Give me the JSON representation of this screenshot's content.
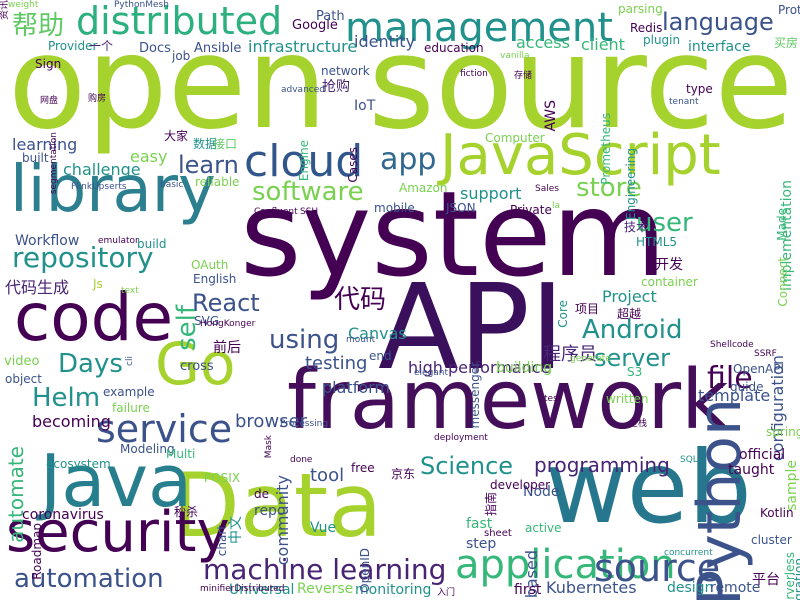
{
  "palette": {
    "dark_purple": "#440154",
    "indigo": "#3b528b",
    "teal": "#21918c",
    "green": "#5ec962",
    "lime": "#addc30",
    "light_green": "#7ad151",
    "slate": "#31688e",
    "sea": "#35b779"
  },
  "words": [
    {
      "text": "open source",
      "color": "#a6d22d",
      "rot": 0
    },
    {
      "text": "system",
      "color": "#440154",
      "rot": 0
    },
    {
      "text": "API",
      "color": "#3a0f5c",
      "rot": 0
    },
    {
      "text": "web",
      "color": "#26778e",
      "rot": 0
    },
    {
      "text": "Data",
      "color": "#a6d22d",
      "rot": 0
    },
    {
      "text": "framework",
      "color": "#440e5a",
      "rot": 0
    },
    {
      "text": "library",
      "color": "#2c7f8e",
      "rot": 0
    },
    {
      "text": "Java",
      "color": "#277f8e",
      "rot": 0
    },
    {
      "text": "JavaScript",
      "color": "#a6d22d",
      "rot": 0
    },
    {
      "text": "code",
      "color": "#440154",
      "rot": 0
    },
    {
      "text": "Python",
      "color": "#3b528b",
      "rot": 270
    },
    {
      "text": "security",
      "color": "#440154",
      "rot": 0
    },
    {
      "text": "Go",
      "color": "#a6d22d",
      "rot": 0
    },
    {
      "text": "cloud",
      "color": "#31568c",
      "rot": 0
    },
    {
      "text": "management",
      "color": "#21918c",
      "rot": 0
    },
    {
      "text": "distributed",
      "color": "#2cb07f",
      "rot": 0
    },
    {
      "text": "application",
      "color": "#35b779",
      "rot": 0
    },
    {
      "text": "service",
      "color": "#3b528b",
      "rot": 0
    },
    {
      "text": "source",
      "color": "#3b528b",
      "rot": 0
    },
    {
      "text": "machine learning",
      "color": "#482475",
      "rot": 0
    },
    {
      "text": "automation",
      "color": "#3b528b",
      "rot": 0
    },
    {
      "text": "repository",
      "color": "#21918c",
      "rot": 0
    },
    {
      "text": "language",
      "color": "#3b528b",
      "rot": 0
    },
    {
      "text": "software",
      "color": "#7ad151",
      "rot": 0
    },
    {
      "text": "React",
      "color": "#3b528b",
      "rot": 0
    },
    {
      "text": "Android",
      "color": "#21918c",
      "rot": 0
    },
    {
      "text": "server",
      "color": "#21918c",
      "rot": 0
    },
    {
      "text": "store",
      "color": "#7ad151",
      "rot": 0
    },
    {
      "text": "app",
      "color": "#31688e",
      "rot": 0
    },
    {
      "text": "file",
      "color": "#440154",
      "rot": 0
    },
    {
      "text": "Helm",
      "color": "#21918c",
      "rot": 0
    },
    {
      "text": "Days",
      "color": "#21918c",
      "rot": 0
    },
    {
      "text": "learn",
      "color": "#3b528b",
      "rot": 0
    },
    {
      "text": "self",
      "color": "#35b779",
      "rot": 270
    },
    {
      "text": "user",
      "color": "#35b779",
      "rot": 0
    },
    {
      "text": "using",
      "color": "#3b528b",
      "rot": 0
    },
    {
      "text": "programming",
      "color": "#482475",
      "rot": 0
    },
    {
      "text": "Science",
      "color": "#21918c",
      "rot": 0
    },
    {
      "text": "Kubernetes",
      "color": "#3b528b",
      "rot": 0
    },
    {
      "text": "automate",
      "color": "#35b779",
      "rot": 270
    },
    {
      "text": "代码",
      "color": "#440154",
      "rot": 0
    },
    {
      "text": "帮助",
      "color": "#5ec962",
      "rot": 0
    },
    {
      "text": "代码生成",
      "color": "#482475",
      "rot": 0
    },
    {
      "text": "browser",
      "color": "#3b528b",
      "rot": 0
    },
    {
      "text": "testing",
      "color": "#3b528b",
      "rot": 0
    },
    {
      "text": "tool",
      "color": "#3b528b",
      "rot": 0
    },
    {
      "text": "high performance",
      "color": "#482475",
      "rot": 0
    },
    {
      "text": "configuration",
      "color": "#3b528b",
      "rot": 270
    },
    {
      "text": "template",
      "color": "#3b528b",
      "rot": 0
    },
    {
      "text": "Project",
      "color": "#21918c",
      "rot": 0
    },
    {
      "text": "程序员",
      "color": "#482475",
      "rot": 0
    },
    {
      "text": "identity",
      "color": "#3b528b",
      "rot": 0
    },
    {
      "text": "access",
      "color": "#35b779",
      "rot": 0
    },
    {
      "text": "client",
      "color": "#35b779",
      "rot": 0
    },
    {
      "text": "infrastructure",
      "color": "#21918c",
      "rot": 0
    },
    {
      "text": "interface",
      "color": "#21918c",
      "rot": 0
    },
    {
      "text": "challenge",
      "color": "#21918c",
      "rot": 0
    },
    {
      "text": "learning",
      "color": "#3b528b",
      "rot": 0
    },
    {
      "text": "easy",
      "color": "#7ad151",
      "rot": 0
    },
    {
      "text": "Workflow",
      "color": "#3b528b",
      "rot": 0
    },
    {
      "text": "support",
      "color": "#21918c",
      "rot": 0
    },
    {
      "text": "based",
      "color": "#3b528b",
      "rot": 270
    },
    {
      "text": "fast",
      "color": "#35b779",
      "rot": 0
    },
    {
      "text": "step",
      "color": "#3b528b",
      "rot": 0
    },
    {
      "text": "Canvas",
      "color": "#21918c",
      "rot": 0
    },
    {
      "text": "platform",
      "color": "#3b528b",
      "rot": 0
    },
    {
      "text": "community",
      "color": "#3b528b",
      "rot": 270
    },
    {
      "text": "building",
      "color": "#7ad151",
      "rot": 0
    },
    {
      "text": "becoming",
      "color": "#440154",
      "rot": 0
    },
    {
      "text": "coronavirus",
      "color": "#440154",
      "rot": 0
    },
    {
      "text": "Node",
      "color": "#3b528b",
      "rot": 0
    },
    {
      "text": "sample",
      "color": "#7ad151",
      "rot": 270
    },
    {
      "text": "official",
      "color": "#440154",
      "rot": 0
    },
    {
      "text": "taught",
      "color": "#440154",
      "rot": 0
    },
    {
      "text": "free",
      "color": "#440154",
      "rot": 0
    },
    {
      "text": "repo",
      "color": "#3b528b",
      "rot": 0
    },
    {
      "text": "Vue",
      "color": "#21918c",
      "rot": 0
    },
    {
      "text": "monitoring",
      "color": "#21918c",
      "rot": 0
    },
    {
      "text": "Reverse",
      "color": "#7ad151",
      "rot": 0
    },
    {
      "text": "Universal",
      "color": "#21918c",
      "rot": 0
    },
    {
      "text": "first",
      "color": "#440154",
      "rot": 0
    },
    {
      "text": "design",
      "color": "#21918c",
      "rot": 0
    },
    {
      "text": "remote",
      "color": "#3b528b",
      "rot": 0
    },
    {
      "text": "平台",
      "color": "#440154",
      "rot": 0
    },
    {
      "text": "Serverless",
      "color": "#35b779",
      "rot": 270
    },
    {
      "text": "integration",
      "color": "#21918c",
      "rot": 270
    },
    {
      "text": "Google",
      "color": "#440154",
      "rot": 0
    },
    {
      "text": "Path",
      "color": "#3b528b",
      "rot": 0
    },
    {
      "text": "Docs",
      "color": "#3b528b",
      "rot": 0
    },
    {
      "text": "job",
      "color": "#3b528b",
      "rot": 0
    },
    {
      "text": "Ansible",
      "color": "#3b528b",
      "rot": 0
    },
    {
      "text": "education",
      "color": "#440154",
      "rot": 0
    },
    {
      "text": "Provider",
      "color": "#21918c",
      "rot": 0
    },
    {
      "text": "一个",
      "color": "#482475",
      "rot": 0
    },
    {
      "text": "network",
      "color": "#3b528b",
      "rot": 0
    },
    {
      "text": "抢购",
      "color": "#482475",
      "rot": 0
    },
    {
      "text": "IoT",
      "color": "#3b528b",
      "rot": 0
    },
    {
      "text": "AWS",
      "color": "#440154",
      "rot": 270
    },
    {
      "text": "Prometheus",
      "color": "#35b779",
      "rot": 270
    },
    {
      "text": "Engineering",
      "color": "#21918c",
      "rot": 270
    },
    {
      "text": "implementation",
      "color": "#35b779",
      "rot": 270
    },
    {
      "text": "type",
      "color": "#440154",
      "rot": 0
    },
    {
      "text": "Redis",
      "color": "#440154",
      "rot": 0
    },
    {
      "text": "plugin",
      "color": "#21918c",
      "rot": 0
    },
    {
      "text": "Protocol",
      "color": "#3b528b",
      "rot": 0
    },
    {
      "text": "parsing",
      "color": "#7ad151",
      "rot": 0
    },
    {
      "text": "Sign",
      "color": "#440154",
      "rot": 0
    },
    {
      "text": "built",
      "color": "#3b528b",
      "rot": 0
    },
    {
      "text": "Amazon",
      "color": "#7ad151",
      "rot": 0
    },
    {
      "text": "mobile",
      "color": "#3b528b",
      "rot": 0
    },
    {
      "text": "JSON",
      "color": "#3b528b",
      "rot": 0
    },
    {
      "text": "Private",
      "color": "#440154",
      "rot": 0
    },
    {
      "text": "Made",
      "color": "#35b779",
      "rot": 270
    },
    {
      "text": "技术",
      "color": "#482475",
      "rot": 0
    },
    {
      "text": "HTML5",
      "color": "#21918c",
      "rot": 0
    },
    {
      "text": "Connect",
      "color": "#7ad151",
      "rot": 270
    },
    {
      "text": "开发",
      "color": "#440154",
      "rot": 0
    },
    {
      "text": "container",
      "color": "#7ad151",
      "rot": 0
    },
    {
      "text": "OAuth",
      "color": "#7ad151",
      "rot": 0
    },
    {
      "text": "English",
      "color": "#3b528b",
      "rot": 0
    },
    {
      "text": "Js",
      "color": "#a6d22d",
      "rot": 0
    },
    {
      "text": "SVG",
      "color": "#3b528b",
      "rot": 0
    },
    {
      "text": "前后",
      "color": "#440154",
      "rot": 0
    },
    {
      "text": "video",
      "color": "#7ad151",
      "rot": 0
    },
    {
      "text": "object",
      "color": "#3b528b",
      "rot": 0
    },
    {
      "text": "example",
      "color": "#3b528b",
      "rot": 0
    },
    {
      "text": "failure",
      "color": "#7ad151",
      "rot": 0
    },
    {
      "text": "cross",
      "color": "#3b528b",
      "rot": 0
    },
    {
      "text": "Modeling",
      "color": "#3b528b",
      "rot": 0
    },
    {
      "text": "ecosystem",
      "color": "#21918c",
      "rot": 0
    },
    {
      "text": "Roadmap",
      "color": "#440154",
      "rot": 270
    },
    {
      "text": "Multi",
      "color": "#35b779",
      "rot": 0
    },
    {
      "text": "POSIX",
      "color": "#7ad151",
      "rot": 0
    },
    {
      "text": "de",
      "color": "#440154",
      "rot": 0
    },
    {
      "text": "中文",
      "color": "#21918c",
      "rot": 270
    },
    {
      "text": "chart",
      "color": "#3b528b",
      "rot": 270
    },
    {
      "text": "秒杀",
      "color": "#440154",
      "rot": 0
    },
    {
      "text": "OpenID",
      "color": "#3b528b",
      "rot": 270
    },
    {
      "text": "京东",
      "color": "#440154",
      "rot": 0
    },
    {
      "text": "developer",
      "color": "#440154",
      "rot": 0
    },
    {
      "text": "end",
      "color": "#3b528b",
      "rot": 0
    },
    {
      "text": "messenger",
      "color": "#3b528b",
      "rot": 270
    },
    {
      "text": "written",
      "color": "#7ad151",
      "rot": 0
    },
    {
      "text": "OpenAPI",
      "color": "#3b528b",
      "rot": 0
    },
    {
      "text": "guide",
      "color": "#3b528b",
      "rot": 0
    },
    {
      "text": "S3",
      "color": "#35b779",
      "rot": 0
    },
    {
      "text": "项目",
      "color": "#440154",
      "rot": 0
    },
    {
      "text": "Core",
      "color": "#21918c",
      "rot": 270
    },
    {
      "text": "spring",
      "color": "#7ad151",
      "rot": 0
    },
    {
      "text": "Kotlin",
      "color": "#440154",
      "rot": 0
    },
    {
      "text": "cluster",
      "color": "#3b528b",
      "rot": 0
    },
    {
      "text": "active",
      "color": "#35b779",
      "rot": 0
    },
    {
      "text": "sheet",
      "color": "#440154",
      "rot": 0
    },
    {
      "text": "指南",
      "color": "#440154",
      "rot": 270
    },
    {
      "text": "Engine",
      "color": "#35b779",
      "rot": 270
    },
    {
      "text": "Cases",
      "color": "#440154",
      "rot": 270
    },
    {
      "text": "Computer",
      "color": "#7ad151",
      "rot": 0
    },
    {
      "text": "Sales",
      "color": "#440154",
      "rot": 0
    },
    {
      "text": "数据",
      "color": "#21918c",
      "rot": 0
    },
    {
      "text": "接口",
      "color": "#5ec962",
      "rot": 0
    },
    {
      "text": "大家",
      "color": "#440154",
      "rot": 0
    },
    {
      "text": "reliable",
      "color": "#7ad151",
      "rot": 0
    },
    {
      "text": "FlinkUpserts",
      "color": "#3b528b",
      "rot": 0
    },
    {
      "text": "basic",
      "color": "#3b528b",
      "rot": 0
    },
    {
      "text": "Confluent",
      "color": "#440154",
      "rot": 0
    },
    {
      "text": "SSH",
      "color": "#440154",
      "rot": 0
    },
    {
      "text": "emulator",
      "color": "#440154",
      "rot": 0
    },
    {
      "text": "build",
      "color": "#21918c",
      "rot": 0
    },
    {
      "text": "text",
      "color": "#7ad151",
      "rot": 0
    },
    {
      "text": "HongKonger",
      "color": "#440154",
      "rot": 0
    },
    {
      "text": "mount",
      "color": "#3b528b",
      "rot": 0
    },
    {
      "text": "elegant",
      "color": "#3b528b",
      "rot": 0
    },
    {
      "text": "generate",
      "color": "#7ad151",
      "rot": 0
    },
    {
      "text": "test",
      "color": "#440154",
      "rot": 0
    },
    {
      "text": "Processing",
      "color": "#3b528b",
      "rot": 0
    },
    {
      "text": "Mask",
      "color": "#440154",
      "rot": 270
    },
    {
      "text": "done",
      "color": "#440154",
      "rot": 0
    },
    {
      "text": "deployment",
      "color": "#440154",
      "rot": 0
    },
    {
      "text": "SQL",
      "color": "#21918c",
      "rot": 0
    },
    {
      "text": "全栈",
      "color": "#440154",
      "rot": 0
    },
    {
      "text": "入门",
      "color": "#440154",
      "rot": 0
    },
    {
      "text": "concurrent",
      "color": "#21918c",
      "rot": 0
    },
    {
      "text": "minifierDistributed",
      "color": "#440154",
      "rot": 0
    },
    {
      "text": "SSRF",
      "color": "#440154",
      "rot": 0
    },
    {
      "text": "Shellcode",
      "color": "#440154",
      "rot": 0
    },
    {
      "text": "tenant",
      "color": "#3b528b",
      "rot": 0
    },
    {
      "text": "advanced",
      "color": "#3b528b",
      "rot": 0
    },
    {
      "text": "weight",
      "color": "#7ad151",
      "rot": 0
    },
    {
      "text": "PythonMesh",
      "color": "#3b528b",
      "rot": 0
    },
    {
      "text": "网盘",
      "color": "#440154",
      "rot": 0
    },
    {
      "text": "购房",
      "color": "#440154",
      "rot": 0
    },
    {
      "text": "segmentation",
      "color": "#440154",
      "rot": 270
    },
    {
      "text": "vanilla",
      "color": "#7ad151",
      "rot": 0
    },
    {
      "text": "fiction",
      "color": "#440154",
      "rot": 0
    },
    {
      "text": "la",
      "color": "#7ad151",
      "rot": 0
    },
    {
      "text": "超越",
      "color": "#440154",
      "rot": 0
    },
    {
      "text": "买房",
      "color": "#5ec962",
      "rot": 0
    },
    {
      "text": "cli",
      "color": "#3b528b",
      "rot": 270
    },
    {
      "text": "存储",
      "color": "#440154",
      "rot": 0
    },
    {
      "text": "资讯",
      "color": "#440154",
      "rot": 270
    }
  ]
}
